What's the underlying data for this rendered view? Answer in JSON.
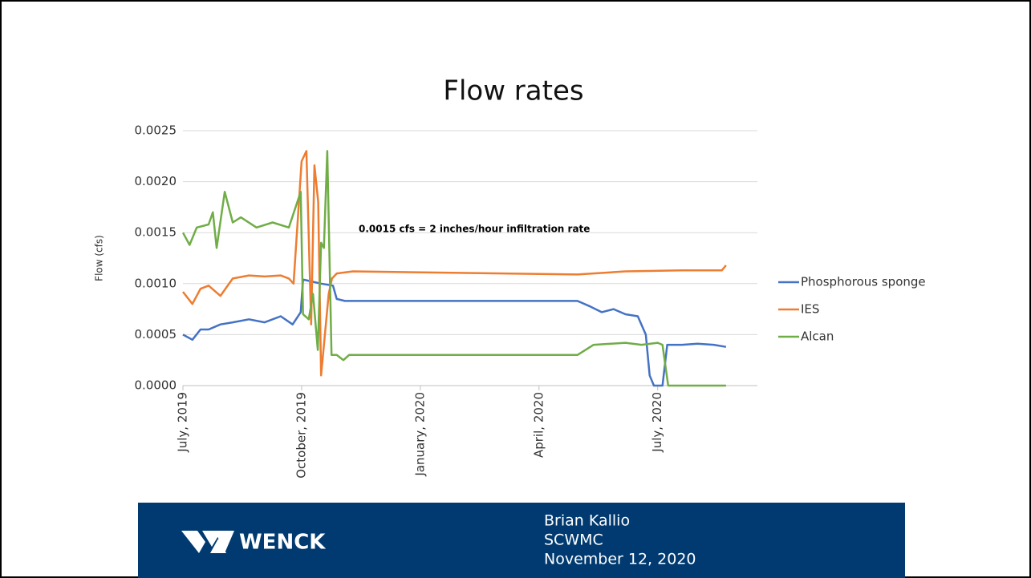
{
  "chart_data": {
    "type": "line",
    "title": "Flow rates",
    "ylabel": "Flow (cfs)",
    "annotation": "0.0015 cfs = 2 inches/hour infiltration rate",
    "xlim": [
      2019.5,
      2020.71
    ],
    "xticks": [
      {
        "value": 2019.5,
        "label": "July, 2019"
      },
      {
        "value": 2019.75,
        "label": "October, 2019"
      },
      {
        "value": 2020.0,
        "label": "January, 2020"
      },
      {
        "value": 2020.25,
        "label": "April, 2020"
      },
      {
        "value": 2020.5,
        "label": "July, 2020"
      }
    ],
    "ylim": [
      0,
      0.0025
    ],
    "yticks": [
      {
        "value": 0,
        "label": "0.0000"
      },
      {
        "value": 0.0005,
        "label": "0.0005"
      },
      {
        "value": 0.001,
        "label": "0.0010"
      },
      {
        "value": 0.0015,
        "label": "0.0015"
      },
      {
        "value": 0.002,
        "label": "0.0020"
      },
      {
        "value": 0.0025,
        "label": "0.0025"
      }
    ],
    "grid": true,
    "legend": "right",
    "series": [
      {
        "name": "Phosphorous sponge",
        "color": "#4472c4",
        "x": [
          2019.5,
          2019.52,
          2019.537,
          2019.554,
          2019.579,
          2019.605,
          2019.639,
          2019.672,
          2019.706,
          2019.731,
          2019.748,
          2019.753,
          2019.791,
          2019.816,
          2019.824,
          2019.841,
          2020.331,
          2020.356,
          2020.382,
          2020.407,
          2020.432,
          2020.458,
          2020.475,
          2020.483,
          2020.492,
          2020.51,
          2020.52,
          2020.551,
          2020.584,
          2020.618,
          2020.644
        ],
        "values": [
          0.0005,
          0.00045,
          0.00055,
          0.00055,
          0.0006,
          0.00062,
          0.00065,
          0.00062,
          0.00068,
          0.0006,
          0.00072,
          0.00104,
          0.001,
          0.00098,
          0.00085,
          0.00083,
          0.00083,
          0.00078,
          0.00072,
          0.00075,
          0.0007,
          0.00068,
          0.0005,
          0.0001,
          0,
          0,
          0.0004,
          0.0004,
          0.00041,
          0.0004,
          0.00038
        ]
      },
      {
        "name": "IES",
        "color": "#ed7d31",
        "x": [
          2019.5,
          2019.52,
          2019.537,
          2019.554,
          2019.579,
          2019.605,
          2019.639,
          2019.672,
          2019.706,
          2019.723,
          2019.733,
          2019.75,
          2019.76,
          2019.77,
          2019.777,
          2019.785,
          2019.791,
          2019.807,
          2019.814,
          2019.824,
          2019.858,
          2020.331,
          2020.432,
          2020.551,
          2020.635,
          2020.644
        ],
        "values": [
          0.00092,
          0.0008,
          0.00095,
          0.00098,
          0.00088,
          0.00105,
          0.00108,
          0.00107,
          0.00108,
          0.00105,
          0.001,
          0.0022,
          0.0023,
          0.0006,
          0.00216,
          0.0018,
          0.0001,
          0.0009,
          0.00105,
          0.0011,
          0.00112,
          0.00109,
          0.00112,
          0.00113,
          0.00113,
          0.00118
        ]
      },
      {
        "name": "Alcan",
        "color": "#70ad47",
        "x": [
          2019.5,
          2019.514,
          2019.529,
          2019.554,
          2019.563,
          2019.571,
          2019.588,
          2019.605,
          2019.622,
          2019.655,
          2019.689,
          2019.723,
          2019.748,
          2019.753,
          2019.765,
          2019.774,
          2019.784,
          2019.791,
          2019.797,
          2019.804,
          2019.813,
          2019.824,
          2019.838,
          2019.85,
          2020.331,
          2020.365,
          2020.432,
          2020.466,
          2020.5,
          2020.51,
          2020.522,
          2020.644
        ],
        "values": [
          0.0015,
          0.00138,
          0.00155,
          0.00158,
          0.0017,
          0.00135,
          0.0019,
          0.0016,
          0.00165,
          0.00155,
          0.0016,
          0.00155,
          0.0019,
          0.0007,
          0.00065,
          0.0009,
          0.00035,
          0.0014,
          0.00135,
          0.0023,
          0.0003,
          0.0003,
          0.00025,
          0.0003,
          0.0003,
          0.0004,
          0.00042,
          0.0004,
          0.00042,
          0.0004,
          0,
          0
        ]
      }
    ]
  },
  "footer": {
    "logo": "WENCK",
    "lines": [
      "Brian Kallio",
      "SCWMC",
      "November 12, 2020"
    ]
  }
}
